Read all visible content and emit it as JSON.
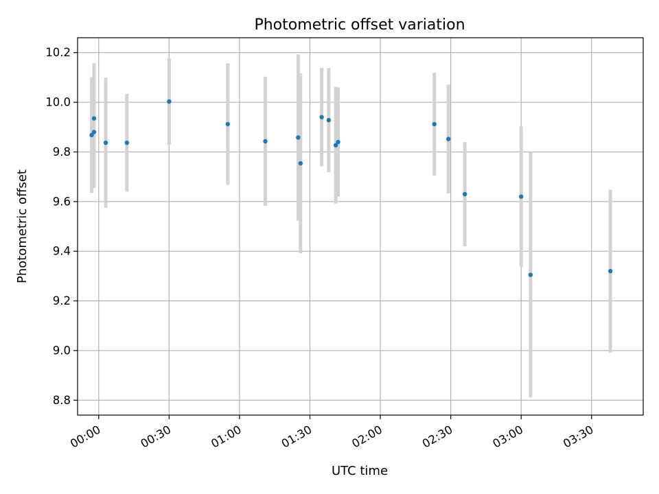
{
  "chart_data": {
    "type": "scatter",
    "title": "Photometric offset variation",
    "xlabel": "UTC time",
    "ylabel": "Photometric offset",
    "x_unit": "HH:MM",
    "xlim": [
      "-00:09",
      "03:52"
    ],
    "ylim": [
      8.74,
      10.26
    ],
    "x_ticks": [
      "00:00",
      "00:30",
      "01:00",
      "01:30",
      "02:00",
      "02:30",
      "03:00",
      "03:30"
    ],
    "y_ticks": [
      8.8,
      9.0,
      9.2,
      9.4,
      9.6,
      9.8,
      10.0,
      10.2
    ],
    "grid": true,
    "marker_color": "#1f77b4",
    "errorbar_color": "#d3d3d3",
    "points": [
      {
        "x": "-00:03",
        "y": 9.868,
        "err": 0.233
      },
      {
        "x": "-00:02",
        "y": 9.935,
        "err": 0.222
      },
      {
        "x": "-00:02",
        "y": 9.88,
        "err": 0.225
      },
      {
        "x": "00:03",
        "y": 9.837,
        "err": 0.262
      },
      {
        "x": "00:12",
        "y": 9.837,
        "err": 0.197
      },
      {
        "x": "00:30",
        "y": 10.003,
        "err": 0.174
      },
      {
        "x": "00:55",
        "y": 9.912,
        "err": 0.245
      },
      {
        "x": "01:11",
        "y": 9.843,
        "err": 0.26
      },
      {
        "x": "01:25",
        "y": 9.858,
        "err": 0.335
      },
      {
        "x": "01:26",
        "y": 9.754,
        "err": 0.362
      },
      {
        "x": "01:35",
        "y": 9.94,
        "err": 0.198
      },
      {
        "x": "01:38",
        "y": 9.928,
        "err": 0.21
      },
      {
        "x": "01:41",
        "y": 9.827,
        "err": 0.235
      },
      {
        "x": "01:42",
        "y": 9.84,
        "err": 0.22
      },
      {
        "x": "02:23",
        "y": 9.912,
        "err": 0.207
      },
      {
        "x": "02:29",
        "y": 9.852,
        "err": 0.219
      },
      {
        "x": "02:36",
        "y": 9.63,
        "err": 0.21
      },
      {
        "x": "03:00",
        "y": 9.62,
        "err": 0.283
      },
      {
        "x": "03:04",
        "y": 9.305,
        "err": 0.494
      },
      {
        "x": "03:38",
        "y": 9.32,
        "err": 0.328
      }
    ]
  }
}
